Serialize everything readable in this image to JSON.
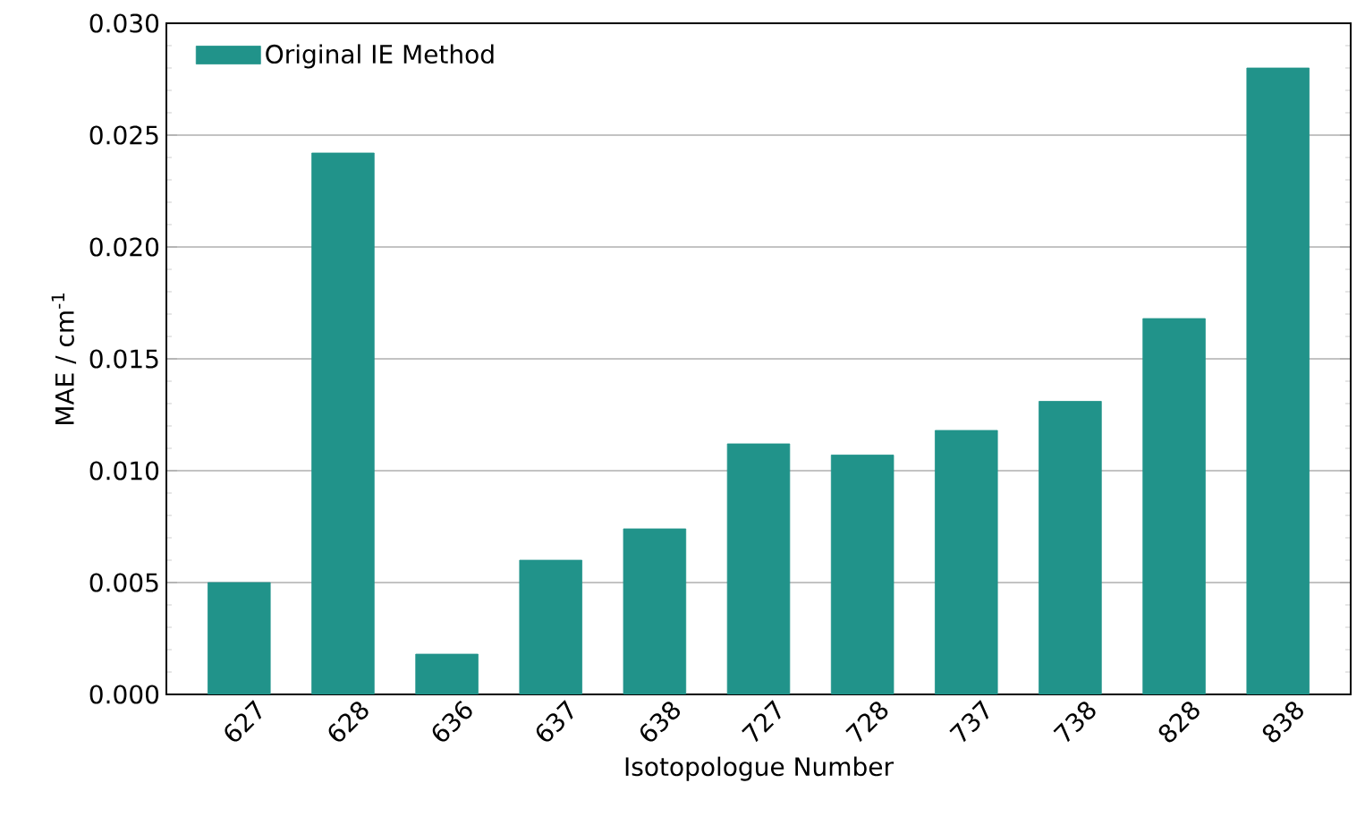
{
  "chart_data": {
    "type": "bar",
    "xlabel": "Isotopologue Number",
    "ylabel": "MAE / cm$^{-1}$",
    "categories": [
      "627",
      "628",
      "636",
      "637",
      "638",
      "727",
      "728",
      "737",
      "738",
      "828",
      "838"
    ],
    "series": [
      {
        "name": "Original IE Method",
        "color": "#21938a",
        "values": [
          0.005,
          0.0242,
          0.0018,
          0.006,
          0.0074,
          0.0112,
          0.0107,
          0.0118,
          0.0131,
          0.0168,
          0.028
        ]
      }
    ],
    "ylim": [
      0,
      0.03
    ],
    "yticks": [
      {
        "value": 0,
        "label": "0.000"
      },
      {
        "value": 0.005,
        "label": "0.005"
      },
      {
        "value": 0.01,
        "label": "0.010"
      },
      {
        "value": 0.015,
        "label": "0.015"
      },
      {
        "value": 0.02,
        "label": "0.020"
      },
      {
        "value": 0.025,
        "label": "0.025"
      },
      {
        "value": 0.03,
        "label": "0.030"
      }
    ],
    "grid": "y",
    "legend": "top left"
  }
}
